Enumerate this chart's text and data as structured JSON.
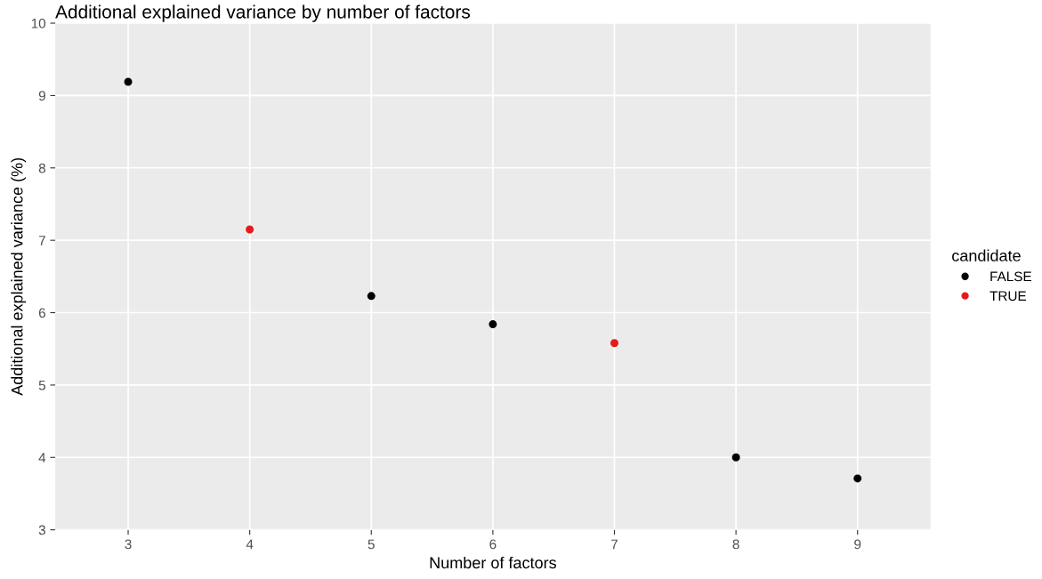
{
  "chart_data": {
    "type": "scatter",
    "title": "Additional explained variance by number of factors",
    "xlabel": "Number of factors",
    "ylabel": "Additional explained variance (%)",
    "legend_title": "candidate",
    "series": [
      {
        "name": "FALSE",
        "color": "#000000",
        "x": [
          3,
          5,
          6,
          8,
          9
        ],
        "values": [
          9.19,
          6.23,
          5.84,
          4.0,
          3.71
        ]
      },
      {
        "name": "TRUE",
        "color": "#e41a1c",
        "x": [
          4,
          7
        ],
        "values": [
          7.15,
          5.58
        ]
      }
    ],
    "xlim": [
      2.4,
      9.6
    ],
    "xticks": [
      3,
      4,
      5,
      6,
      7,
      8,
      9
    ],
    "ylim": [
      3,
      10
    ],
    "yticks": [
      3,
      4,
      5,
      6,
      7,
      8,
      9,
      10
    ],
    "grid": true,
    "legend": "right",
    "marker": "circle"
  }
}
